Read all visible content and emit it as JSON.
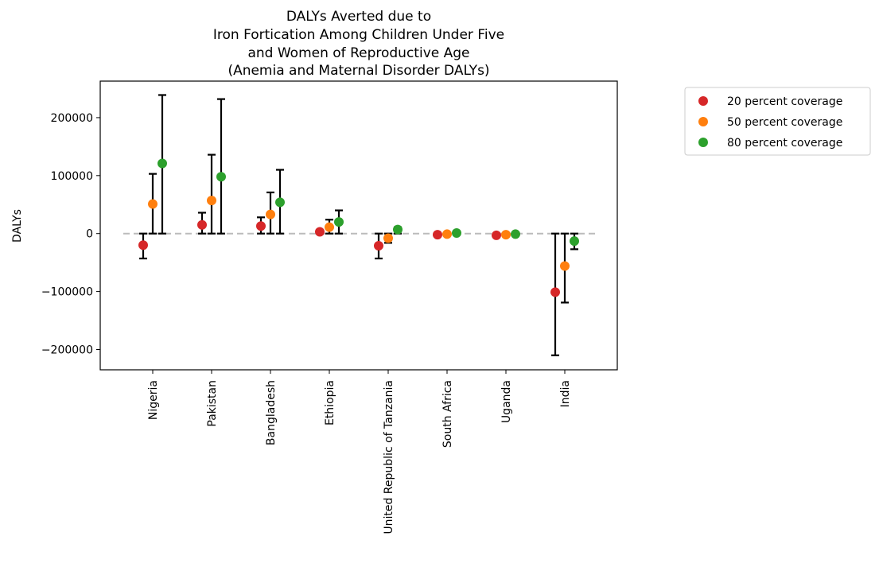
{
  "chart_data": {
    "type": "scatter",
    "title_lines": [
      "DALYs Averted due to",
      "Iron Fortication Among Children Under Five",
      "and Women of Reproductive Age",
      "(Anemia and Maternal Disorder DALYs)"
    ],
    "xlabel": "",
    "ylabel": "DALYs",
    "categories": [
      "Nigeria",
      "Pakistan",
      "Bangladesh",
      "Ethiopia",
      "United Republic of Tanzania",
      "South Africa",
      "Uganda",
      "India"
    ],
    "ylim": [
      -235000,
      263000
    ],
    "yticks": [
      -200000,
      -100000,
      0,
      100000,
      200000
    ],
    "ytick_labels": [
      "−200000",
      "−100000",
      "0",
      "100000",
      "200000"
    ],
    "reference_line": {
      "y": 0,
      "style": "dashed",
      "color": "#bbbbbb"
    },
    "grid": false,
    "legend_position": "outside-right",
    "series": [
      {
        "name": "20 percent coverage",
        "color": "#d62728",
        "values": [
          -20000,
          15000,
          13000,
          3000,
          -21000,
          -2000,
          -3000,
          -101000
        ],
        "lower": [
          -43000,
          0,
          0,
          0,
          -43000,
          -5000,
          -6000,
          -210000
        ],
        "upper": [
          0,
          36000,
          28000,
          6000,
          0,
          0,
          0,
          0
        ]
      },
      {
        "name": "50 percent coverage",
        "color": "#ff7f0e",
        "values": [
          51000,
          57000,
          33000,
          11000,
          -8000,
          -1000,
          -2000,
          -56000
        ],
        "lower": [
          0,
          0,
          0,
          0,
          -16000,
          -3000,
          -5000,
          -119000
        ],
        "upper": [
          103000,
          136000,
          71000,
          24000,
          0,
          1000,
          1000,
          0
        ]
      },
      {
        "name": "80 percent coverage",
        "color": "#2ca02c",
        "values": [
          121000,
          98000,
          54000,
          20000,
          7000,
          1000,
          -1000,
          -13000
        ],
        "lower": [
          0,
          0,
          0,
          0,
          0,
          -1000,
          -3000,
          -27000
        ],
        "upper": [
          239000,
          232000,
          110000,
          40000,
          11000,
          4000,
          1000,
          0
        ]
      }
    ]
  }
}
